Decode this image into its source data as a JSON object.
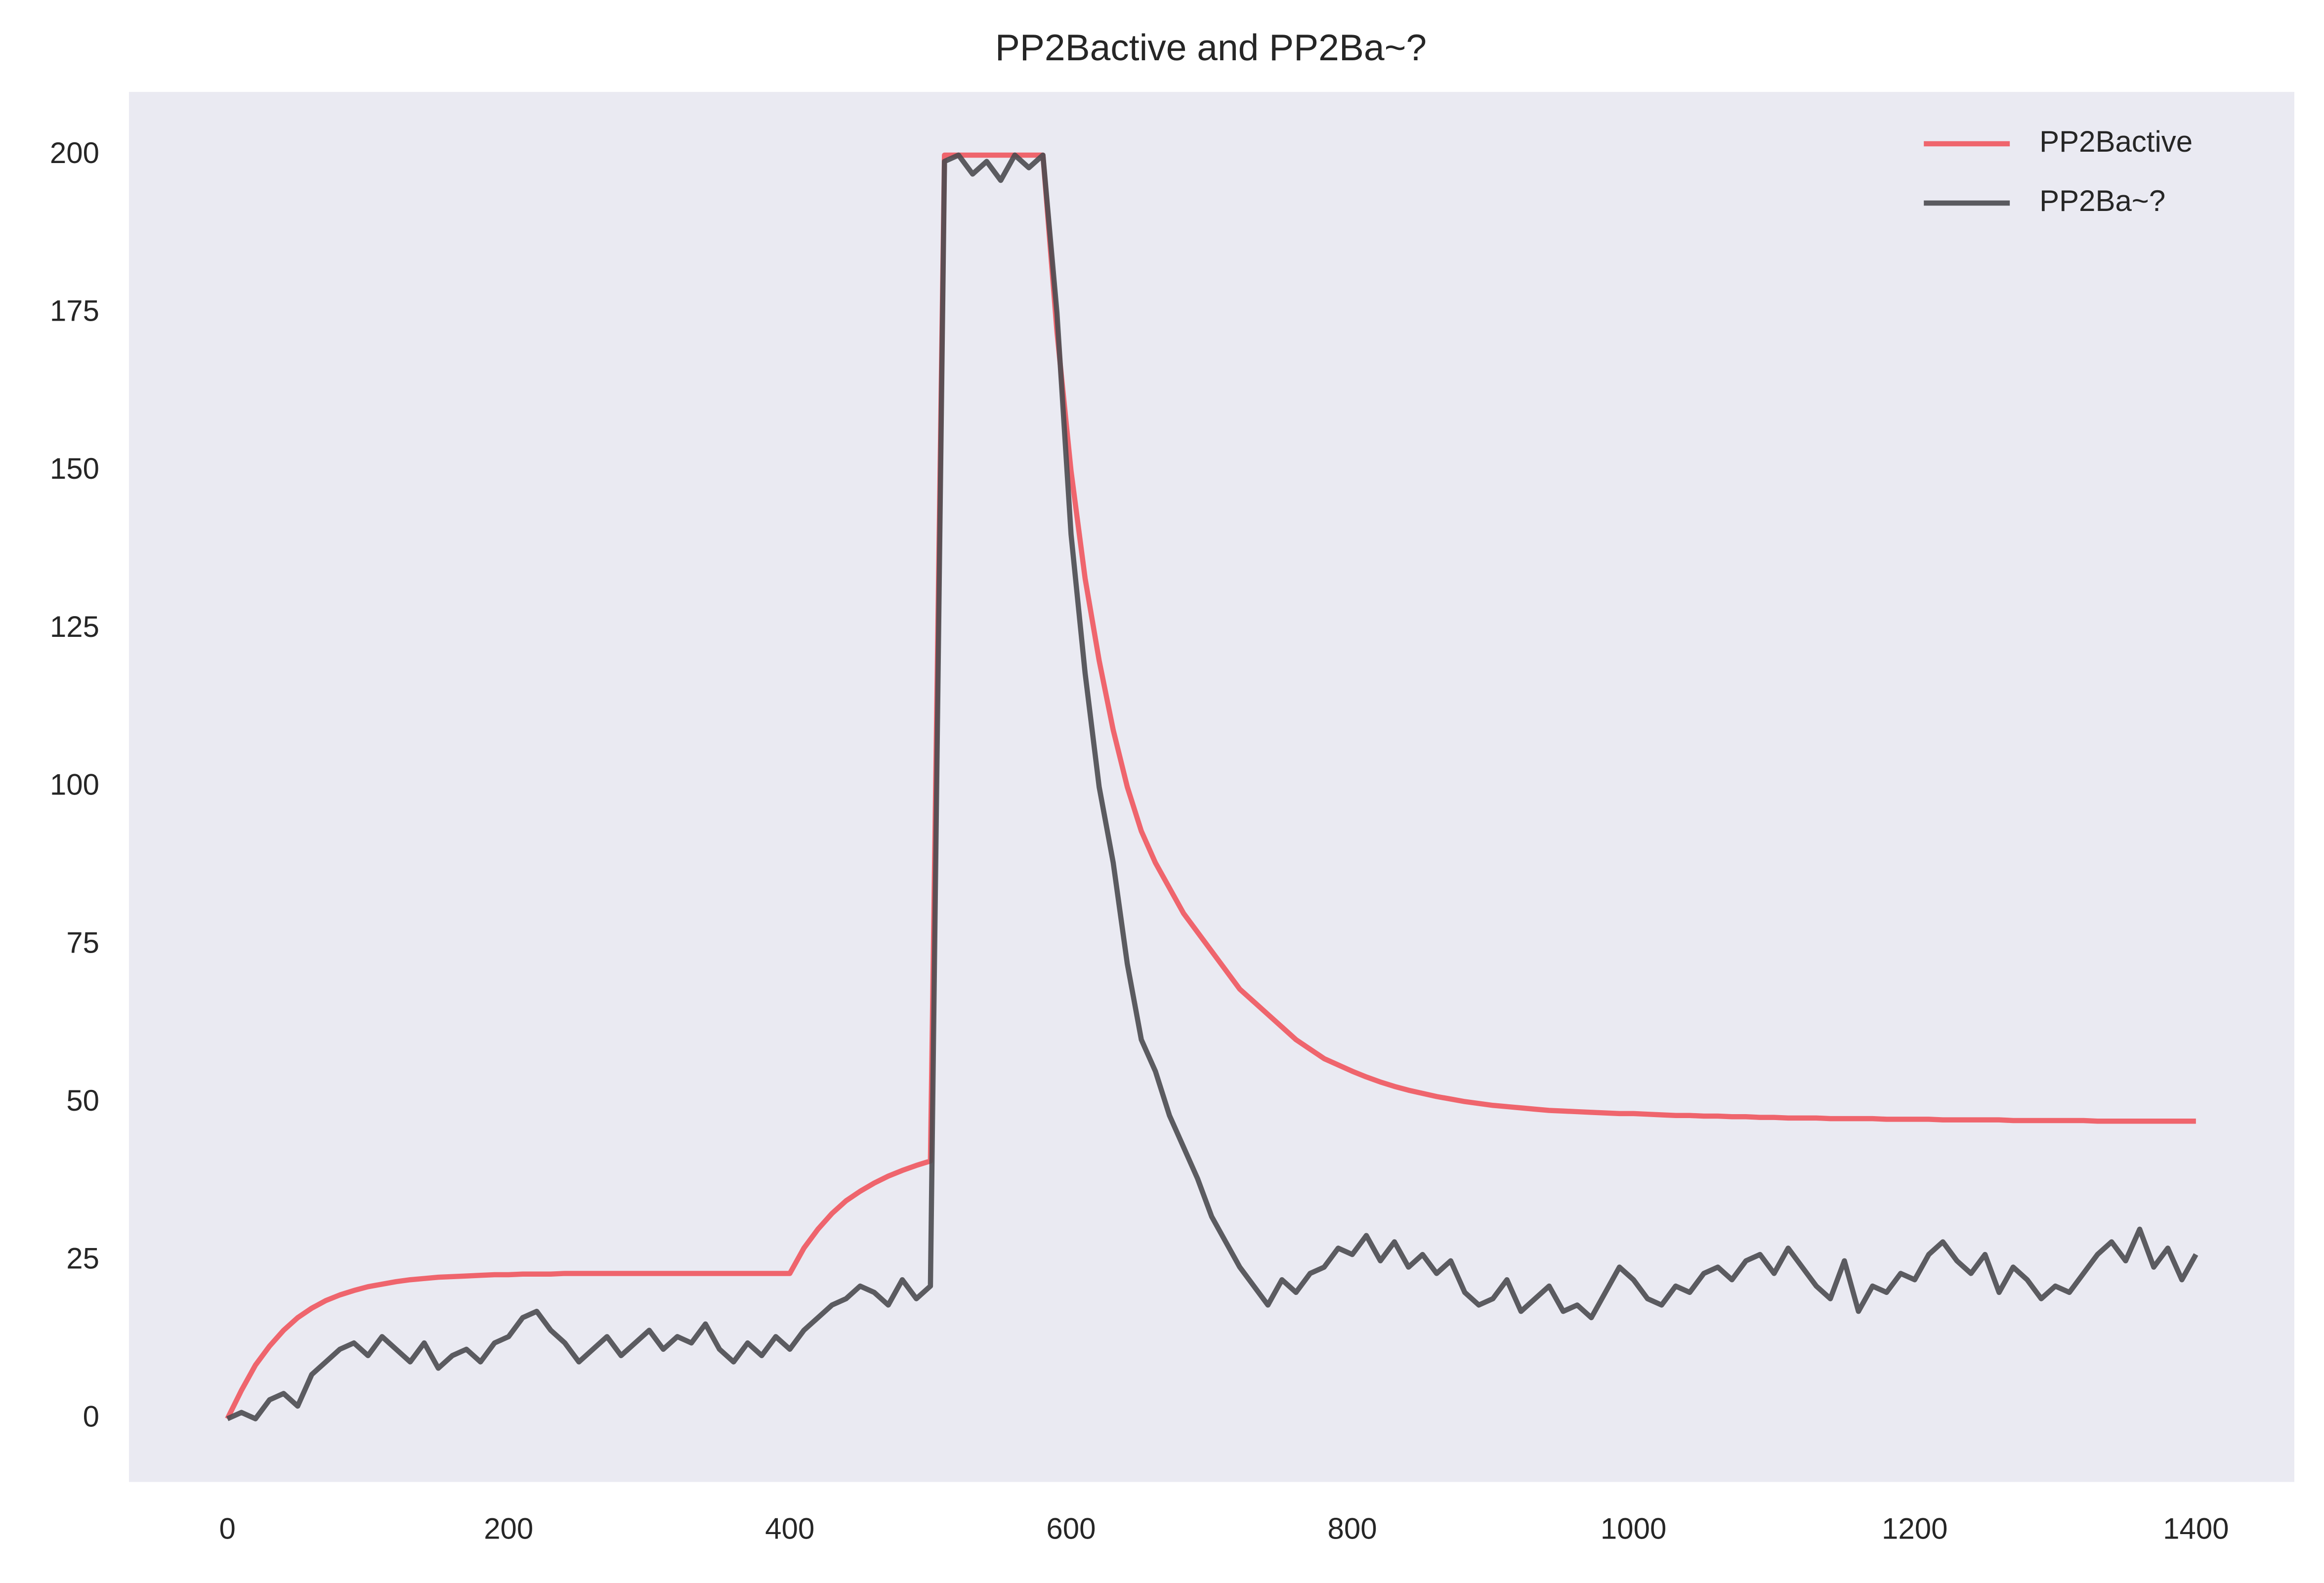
{
  "chart_data": {
    "type": "line",
    "title": "PP2Bactive and PP2Ba~?",
    "x": [
      0,
      10,
      20,
      30,
      40,
      50,
      60,
      70,
      80,
      90,
      100,
      110,
      120,
      130,
      140,
      150,
      160,
      170,
      180,
      190,
      200,
      210,
      220,
      230,
      240,
      250,
      260,
      270,
      280,
      290,
      300,
      310,
      320,
      330,
      340,
      350,
      360,
      370,
      380,
      390,
      400,
      410,
      420,
      430,
      440,
      450,
      460,
      470,
      480,
      490,
      500,
      510,
      520,
      530,
      540,
      550,
      560,
      570,
      580,
      590,
      600,
      610,
      620,
      630,
      640,
      650,
      660,
      670,
      680,
      690,
      700,
      710,
      720,
      730,
      740,
      750,
      760,
      770,
      780,
      790,
      800,
      810,
      820,
      830,
      840,
      850,
      860,
      870,
      880,
      890,
      900,
      910,
      920,
      930,
      940,
      950,
      960,
      970,
      980,
      990,
      1000,
      1010,
      1020,
      1030,
      1040,
      1050,
      1060,
      1070,
      1080,
      1090,
      1100,
      1110,
      1120,
      1130,
      1140,
      1150,
      1160,
      1170,
      1180,
      1190,
      1200,
      1210,
      1220,
      1230,
      1240,
      1250,
      1260,
      1270,
      1280,
      1290,
      1300,
      1310,
      1320,
      1330,
      1340,
      1350,
      1360,
      1370,
      1380,
      1390,
      1400
    ],
    "series": [
      {
        "name": "PP2Bactive",
        "color": "#f0575e",
        "values": [
          0,
          4.5,
          8.5,
          11.5,
          14,
          16,
          17.5,
          18.7,
          19.6,
          20.3,
          20.9,
          21.3,
          21.7,
          22,
          22.2,
          22.4,
          22.5,
          22.6,
          22.7,
          22.8,
          22.8,
          22.9,
          22.9,
          22.9,
          23,
          23,
          23,
          23,
          23,
          23,
          23,
          23,
          23,
          23,
          23,
          23,
          23,
          23,
          23,
          23,
          23,
          27,
          30,
          32.5,
          34.5,
          36,
          37.3,
          38.4,
          39.3,
          40.1,
          40.8,
          200,
          200,
          200,
          200,
          200,
          200,
          200,
          200,
          172,
          150,
          133,
          120,
          109,
          100,
          93,
          88,
          84,
          80,
          77,
          74,
          71,
          68,
          66,
          64,
          62,
          60,
          58.5,
          57,
          56,
          55,
          54.1,
          53.3,
          52.6,
          52,
          51.5,
          51,
          50.6,
          50.2,
          49.9,
          49.6,
          49.4,
          49.2,
          49,
          48.8,
          48.7,
          48.6,
          48.5,
          48.4,
          48.3,
          48.3,
          48.2,
          48.1,
          48,
          48,
          47.9,
          47.9,
          47.8,
          47.8,
          47.7,
          47.7,
          47.6,
          47.6,
          47.6,
          47.5,
          47.5,
          47.5,
          47.5,
          47.4,
          47.4,
          47.4,
          47.4,
          47.3,
          47.3,
          47.3,
          47.3,
          47.3,
          47.2,
          47.2,
          47.2,
          47.2,
          47.2,
          47.2,
          47.1,
          47.1,
          47.1,
          47.1,
          47.1,
          47.1,
          47.1,
          47.1
        ]
      },
      {
        "name": "PP2Ba~?",
        "color": "#4b4b50",
        "values": [
          0,
          1,
          0,
          3,
          4,
          2,
          7,
          9,
          11,
          12,
          10,
          13,
          11,
          9,
          12,
          8,
          10,
          11,
          9,
          12,
          13,
          16,
          17,
          14,
          12,
          9,
          11,
          13,
          10,
          12,
          14,
          11,
          13,
          12,
          15,
          11,
          9,
          12,
          10,
          13,
          11,
          14,
          16,
          18,
          19,
          21,
          20,
          18,
          22,
          19,
          21,
          199,
          200,
          197,
          199,
          196,
          200,
          198,
          200,
          175,
          140,
          118,
          100,
          88,
          72,
          60,
          55,
          48,
          43,
          38,
          32,
          28,
          24,
          21,
          18,
          22,
          20,
          23,
          24,
          27,
          26,
          29,
          25,
          28,
          24,
          26,
          23,
          25,
          20,
          18,
          19,
          22,
          17,
          19,
          21,
          17,
          18,
          16,
          20,
          24,
          22,
          19,
          18,
          21,
          20,
          23,
          24,
          22,
          25,
          26,
          23,
          27,
          24,
          21,
          19,
          25,
          17,
          21,
          20,
          23,
          22,
          26,
          28,
          25,
          23,
          26,
          20,
          24,
          22,
          19,
          21,
          20,
          23,
          26,
          28,
          25,
          30,
          24,
          27,
          22,
          26
        ]
      }
    ],
    "xlim": [
      -70,
      1470
    ],
    "ylim": [
      -10,
      210
    ],
    "xticks": [
      0,
      200,
      400,
      600,
      800,
      1000,
      1200,
      1400
    ],
    "yticks": [
      0,
      25,
      50,
      75,
      100,
      125,
      150,
      175,
      200
    ],
    "grid": false,
    "legend": "upper right"
  }
}
